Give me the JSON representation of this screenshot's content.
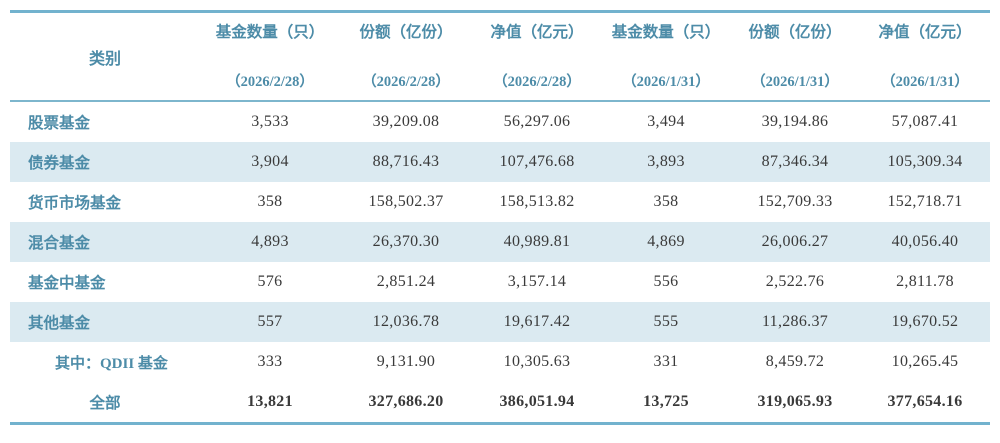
{
  "table": {
    "row_label_header": "类别",
    "columns": [
      {
        "label": "基金数量（只）",
        "date": "（2026/2/28）"
      },
      {
        "label": "份额（亿份）",
        "date": "（2026/2/28）"
      },
      {
        "label": "净值（亿元）",
        "date": "（2026/2/28）"
      },
      {
        "label": "基金数量（只）",
        "date": "（2026/1/31）"
      },
      {
        "label": "份额（亿份）",
        "date": "（2026/1/31）"
      },
      {
        "label": "净值（亿元）",
        "date": "（2026/1/31）"
      }
    ],
    "rows": [
      {
        "label": "股票基金",
        "values": [
          "3,533",
          "39,209.08",
          "56,297.06",
          "3,494",
          "39,194.86",
          "57,087.41"
        ]
      },
      {
        "label": "债券基金",
        "values": [
          "3,904",
          "88,716.43",
          "107,476.68",
          "3,893",
          "87,346.34",
          "105,309.34"
        ]
      },
      {
        "label": "货币市场基金",
        "values": [
          "358",
          "158,502.37",
          "158,513.82",
          "358",
          "152,709.33",
          "152,718.71"
        ]
      },
      {
        "label": "混合基金",
        "values": [
          "4,893",
          "26,370.30",
          "40,989.81",
          "4,869",
          "26,006.27",
          "40,056.40"
        ]
      },
      {
        "label": "基金中基金",
        "values": [
          "576",
          "2,851.24",
          "3,157.14",
          "556",
          "2,522.76",
          "2,811.78"
        ]
      },
      {
        "label": "其他基金",
        "values": [
          "557",
          "12,036.78",
          "19,617.42",
          "555",
          "11,286.37",
          "19,670.52"
        ]
      },
      {
        "label": "其中：QDII 基金",
        "values": [
          "333",
          "9,131.90",
          "10,305.63",
          "331",
          "8,459.72",
          "10,265.45"
        ]
      },
      {
        "label": "全部",
        "values": [
          "13,821",
          "327,686.20",
          "386,051.94",
          "13,725",
          "319,065.93",
          "377,654.16"
        ]
      }
    ],
    "colors": {
      "header_text": "#4d8ca8",
      "stripe_bg": "#dbeaf1",
      "rule_line": "#72b2ce",
      "number_text": "#3a3a3a"
    }
  }
}
